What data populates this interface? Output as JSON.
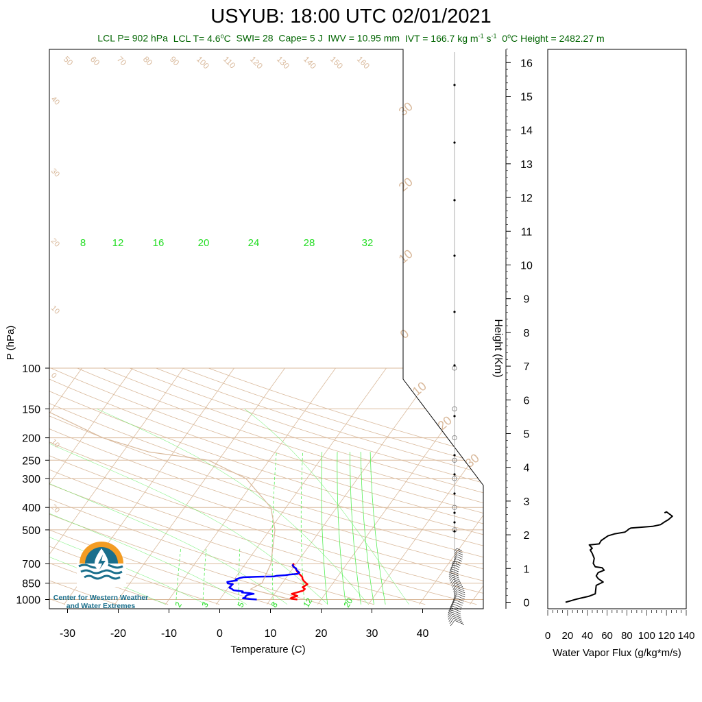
{
  "title": "USYUB: 18:00 UTC 02/01/2021",
  "stats": {
    "lcl_p": "LCL P= 902 hPa",
    "lcl_t_prefix": "LCL T= 4.6",
    "lcl_t_unit": "C",
    "swi": "SWI= 28",
    "cape": "Cape= 5 J",
    "iwv": "IWV = 10.95 mm",
    "ivt_prefix": "IVT = 166.7 kg m",
    "ivt_exp1": "-1",
    "ivt_mid": " s",
    "ivt_exp2": "-1",
    "zero_height_prefix": "0",
    "zero_height_suffix": "C Height = 2482.27 m"
  },
  "logo": {
    "line1": "Center for Western Weather",
    "line2": "and Water Extremes"
  },
  "colors": {
    "temperature": "#ff0000",
    "temperature_upper": "#cc0000",
    "dewpoint": "#0000ff",
    "background_lines": "#d9b99b",
    "mixing_ratio": "#55ee55",
    "stats_text": "#006400",
    "logo_orange": "#f39c23",
    "logo_blue": "#1a6f8c"
  },
  "chart_data": [
    {
      "type": "line",
      "subtype": "skew-t log-p",
      "xlabel": "Temperature (C)",
      "ylabel": "P (hPa)",
      "xlim": [
        -34,
        52
      ],
      "ylim": [
        1050,
        100
      ],
      "y_scale": "log",
      "x_ticks": [
        -30,
        -20,
        -10,
        0,
        10,
        20,
        30,
        40
      ],
      "y_ticks": [
        100,
        150,
        200,
        250,
        300,
        400,
        500,
        700,
        850,
        1000
      ],
      "dry_adiabat_labels": [
        "50",
        "60",
        "70",
        "80",
        "90",
        "100",
        "110",
        "120",
        "130",
        "140",
        "150",
        "160"
      ],
      "isotherm_labels_left": [
        "40",
        "30",
        "20",
        "10",
        "0",
        "10",
        "20"
      ],
      "isotherm_labels_right": [
        "30",
        "20",
        "10",
        "0",
        "10",
        "20",
        "30"
      ],
      "mixing_ratio_top_labels": [
        "8",
        "12",
        "16",
        "20",
        "24",
        "28",
        "32"
      ],
      "mixing_ratio_bottom_labels": [
        "2",
        "3",
        "5",
        "8",
        "12",
        "20"
      ],
      "series": [
        {
          "role": "temperature",
          "points": [
            [
              15.3,
              1000
            ],
            [
              14.5,
              995
            ],
            [
              13.8,
              990
            ],
            [
              13.9,
              982
            ],
            [
              14.3,
              975
            ],
            [
              14.8,
              965
            ],
            [
              14.1,
              955
            ],
            [
              13.4,
              945
            ],
            [
              14.3,
              930
            ],
            [
              15.2,
              915
            ],
            [
              15.3,
              900
            ],
            [
              14.6,
              885
            ],
            [
              14.9,
              870
            ],
            [
              15.1,
              858
            ],
            [
              14.5,
              845
            ],
            [
              13.9,
              830
            ],
            [
              13.4,
              815
            ],
            [
              13.1,
              800
            ],
            [
              12.5,
              785
            ],
            [
              11.8,
              770
            ],
            [
              11.3,
              757
            ],
            [
              10.9,
              745
            ],
            [
              10.6,
              735
            ],
            [
              10.1,
              725
            ],
            [
              9.6,
              715
            ],
            [
              9.6,
              705
            ],
            [
              9.3,
              698
            ]
          ]
        },
        {
          "role": "dewpoint",
          "points": [
            [
              7.3,
              1000
            ],
            [
              5.8,
              995
            ],
            [
              4.4,
              988
            ],
            [
              4.8,
              980
            ],
            [
              4.6,
              970
            ],
            [
              4.8,
              955
            ],
            [
              5.9,
              945
            ],
            [
              4.9,
              938
            ],
            [
              3.4,
              933
            ],
            [
              3.4,
              922
            ],
            [
              1.4,
              912
            ],
            [
              0.9,
              900
            ],
            [
              0.2,
              888
            ],
            [
              0.3,
              872
            ],
            [
              0.4,
              858
            ],
            [
              -0.7,
              852
            ],
            [
              -1.0,
              840
            ],
            [
              -0.3,
              833
            ],
            [
              0.7,
              828
            ],
            [
              0.3,
              818
            ],
            [
              0.8,
              809
            ],
            [
              1.5,
              801
            ],
            [
              4.2,
              797
            ],
            [
              7.4,
              795
            ],
            [
              7.9,
              790
            ],
            [
              9.5,
              785
            ],
            [
              10.2,
              780
            ],
            [
              11.7,
              775
            ],
            [
              11.9,
              766
            ],
            [
              11.4,
              755
            ],
            [
              10.9,
              744
            ],
            [
              10.6,
              733
            ],
            [
              9.9,
              722
            ],
            [
              9.6,
              712
            ],
            [
              9.3,
              705
            ]
          ]
        },
        {
          "role": "parcel",
          "points": [
            [
              14.0,
              1000
            ],
            [
              4.6,
              902
            ],
            [
              6.0,
              850
            ],
            [
              5.0,
              700
            ],
            [
              1.0,
              500
            ],
            [
              -3.0,
              400
            ],
            [
              -12.0,
              300
            ],
            [
              -22.0,
              250
            ],
            [
              -35.0,
              230
            ],
            [
              -46.0,
              200
            ],
            [
              -62.0,
              150
            ],
            [
              -78.0,
              120
            ]
          ]
        }
      ]
    },
    {
      "type": "line",
      "xlabel": "Water Vapor Flux (g/kg*m/s)",
      "ylabel": "Height (Km)",
      "xlim": [
        0,
        140
      ],
      "ylim": [
        0,
        16.4
      ],
      "x_ticks": [
        0,
        20,
        40,
        60,
        80,
        100,
        120,
        140
      ],
      "y_ticks": [
        0,
        1,
        2,
        3,
        4,
        5,
        6,
        7,
        8,
        9,
        10,
        11,
        12,
        13,
        14,
        15,
        16
      ],
      "series": [
        {
          "role": "water-vapor-flux",
          "points": [
            [
              18,
              0.0
            ],
            [
              30,
              0.1
            ],
            [
              42,
              0.18
            ],
            [
              48,
              0.25
            ],
            [
              49,
              0.5
            ],
            [
              56,
              0.6
            ],
            [
              51,
              0.7
            ],
            [
              49,
              0.78
            ],
            [
              51,
              0.88
            ],
            [
              57,
              0.95
            ],
            [
              55,
              1.02
            ],
            [
              48,
              1.05
            ],
            [
              46,
              1.15
            ],
            [
              47,
              1.3
            ],
            [
              45,
              1.45
            ],
            [
              43,
              1.55
            ],
            [
              45,
              1.6
            ],
            [
              42,
              1.7
            ],
            [
              52,
              1.73
            ],
            [
              54,
              1.83
            ],
            [
              61,
              1.97
            ],
            [
              68,
              2.03
            ],
            [
              78,
              2.08
            ],
            [
              80,
              2.12
            ],
            [
              82,
              2.17
            ],
            [
              84,
              2.2
            ],
            [
              106,
              2.25
            ],
            [
              114,
              2.3
            ],
            [
              118,
              2.38
            ],
            [
              122,
              2.45
            ],
            [
              126,
              2.55
            ],
            [
              120,
              2.68
            ],
            [
              118,
              2.65
            ]
          ]
        }
      ]
    }
  ]
}
